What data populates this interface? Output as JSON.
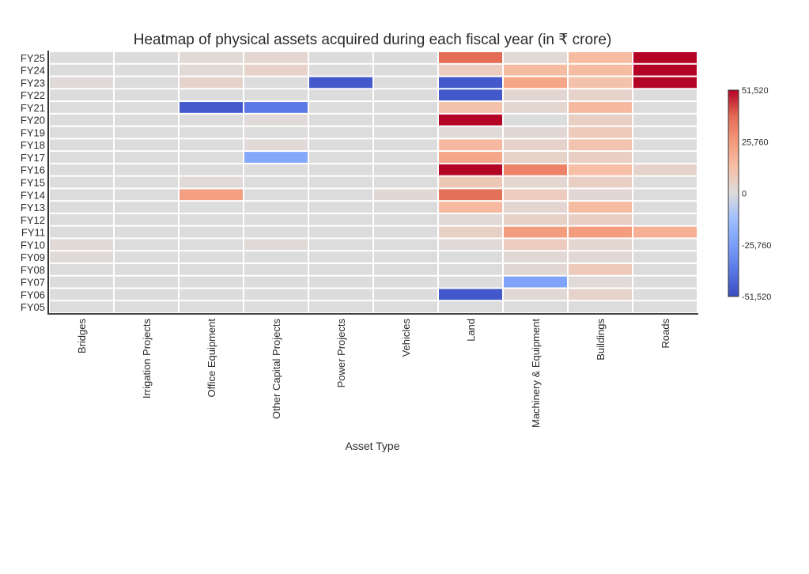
{
  "chart_data": {
    "type": "heatmap",
    "title": "Heatmap of physical assets acquired during each fiscal year (in ₹ crore)",
    "xlabel": "Asset Type",
    "ylabel": "",
    "x": [
      "Bridges",
      "Irrigation Projects",
      "Office Equipment",
      "Other Capital Projects",
      "Power Projects",
      "Vehicles",
      "Land",
      "Machinery & Equipment",
      "Buildings",
      "Roads"
    ],
    "y": [
      "FY25",
      "FY24",
      "FY23",
      "FY22",
      "FY21",
      "FY20",
      "FY19",
      "FY18",
      "FY17",
      "FY16",
      "FY15",
      "FY14",
      "FY13",
      "FY12",
      "FY11",
      "FY10",
      "FY09",
      "FY08",
      "FY07",
      "FY06",
      "FY05"
    ],
    "values": [
      [
        0,
        0,
        1500,
        3000,
        0,
        0,
        38000,
        1500,
        14000,
        51520
      ],
      [
        0,
        0,
        1500,
        4500,
        0,
        0,
        7000,
        14000,
        14000,
        51520
      ],
      [
        1000,
        0,
        4000,
        0,
        -48000,
        0,
        -48000,
        22000,
        12000,
        51520
      ],
      [
        0,
        0,
        0,
        0,
        0,
        0,
        -48000,
        3000,
        4000,
        0
      ],
      [
        0,
        0,
        -48000,
        -38000,
        0,
        0,
        12000,
        3000,
        15000,
        0
      ],
      [
        0,
        0,
        0,
        1000,
        0,
        0,
        51520,
        0,
        6000,
        0
      ],
      [
        0,
        0,
        0,
        0,
        0,
        0,
        1000,
        2000,
        8000,
        0
      ],
      [
        0,
        0,
        0,
        1500,
        0,
        0,
        15000,
        4000,
        11000,
        0
      ],
      [
        0,
        0,
        0,
        -22000,
        0,
        0,
        22000,
        4500,
        6000,
        0
      ],
      [
        0,
        0,
        0,
        0,
        0,
        0,
        51520,
        32000,
        13000,
        4000
      ],
      [
        0,
        0,
        1000,
        0,
        0,
        0,
        9000,
        3000,
        6000,
        0
      ],
      [
        0,
        0,
        24000,
        0,
        0,
        2000,
        37000,
        7000,
        2000,
        0
      ],
      [
        0,
        0,
        0,
        0,
        0,
        0,
        15000,
        3000,
        14000,
        0
      ],
      [
        0,
        0,
        0,
        0,
        0,
        0,
        1500,
        5000,
        6000,
        0
      ],
      [
        0,
        0,
        0,
        0,
        0,
        0,
        5000,
        25000,
        25000,
        18000
      ],
      [
        1500,
        0,
        0,
        1000,
        0,
        0,
        1000,
        7000,
        3000,
        0
      ],
      [
        1000,
        0,
        0,
        0,
        0,
        0,
        0,
        2000,
        2000,
        0
      ],
      [
        0,
        0,
        0,
        0,
        0,
        0,
        0,
        2000,
        8000,
        0
      ],
      [
        0,
        0,
        0,
        0,
        0,
        0,
        0,
        -24000,
        1000,
        0
      ],
      [
        0,
        0,
        0,
        0,
        0,
        0,
        -48000,
        2000,
        4000,
        0
      ],
      [
        0,
        0,
        0,
        0,
        0,
        0,
        0,
        0,
        0,
        0
      ]
    ],
    "zlim": [
      -51520,
      51520
    ],
    "colorscale": "coolwarm",
    "colorbar": {
      "ticks": [
        51520,
        25760,
        0,
        -25760,
        -51520
      ],
      "tick_labels": [
        "51,520",
        "25,760",
        "0",
        "-25,760",
        "-51,520"
      ],
      "placement": "right"
    },
    "grid": false
  }
}
